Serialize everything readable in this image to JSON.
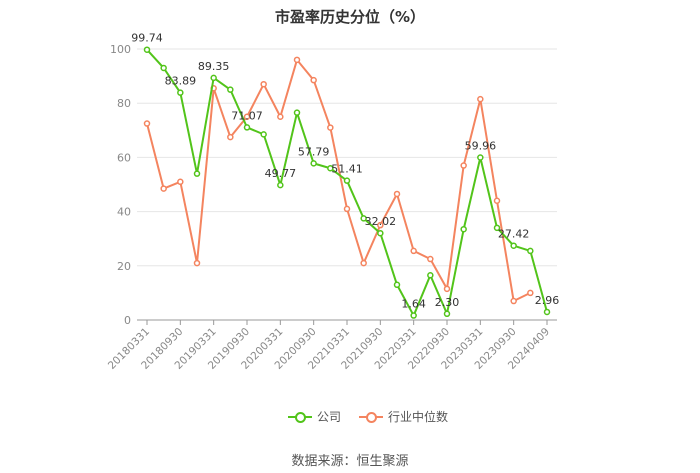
{
  "chart_data": {
    "type": "line",
    "title": "市盈率历史分位（%）",
    "xlabel": "",
    "ylabel": "",
    "ylim": [
      0,
      100
    ],
    "yticks": [
      0,
      20,
      40,
      60,
      80,
      100
    ],
    "x": [
      "20180331",
      "20180630",
      "20180930",
      "20181231",
      "20190331",
      "20190630",
      "20190930",
      "20191231",
      "20200331",
      "20200630",
      "20200930",
      "20201231",
      "20210331",
      "20210630",
      "20210930",
      "20211231",
      "20220331",
      "20220630",
      "20220930",
      "20221231",
      "20230331",
      "20230630",
      "20230930",
      "20231231",
      "20240409"
    ],
    "xtick_labels": [
      "20180331",
      "20180930",
      "20190331",
      "20190930",
      "20200331",
      "20200930",
      "20210331",
      "20210930",
      "20220331",
      "20220930",
      "20230331",
      "20230930",
      "20240409"
    ],
    "series": [
      {
        "name": "公司",
        "color": "#52c41a",
        "values": [
          99.74,
          93,
          83.89,
          54,
          89.35,
          85,
          71.07,
          68.5,
          49.77,
          76.5,
          57.79,
          56,
          51.41,
          37.5,
          32.02,
          13,
          1.64,
          16.5,
          2.3,
          33.5,
          59.96,
          34,
          27.42,
          25.5,
          2.96
        ],
        "labels": {
          "0": "99.74",
          "2": "83.89",
          "4": "89.35",
          "6": "71.07",
          "8": "49.77",
          "10": "57.79",
          "12": "51.41",
          "14": "32.02",
          "16": "1.64",
          "18": "2.30",
          "20": "59.96",
          "22": "27.42",
          "24": "2.96"
        }
      },
      {
        "name": "行业中位数",
        "color": "#f4845f",
        "values": [
          72.5,
          48.5,
          51,
          21,
          85.5,
          67.5,
          75,
          87,
          75,
          96,
          88.5,
          71,
          41,
          21,
          35,
          46.5,
          25.5,
          22.5,
          11.5,
          57,
          81.5,
          44,
          7,
          10,
          null
        ]
      }
    ],
    "grid": true,
    "legend_position": "bottom"
  },
  "footer": {
    "source": "数据来源：恒生聚源"
  }
}
